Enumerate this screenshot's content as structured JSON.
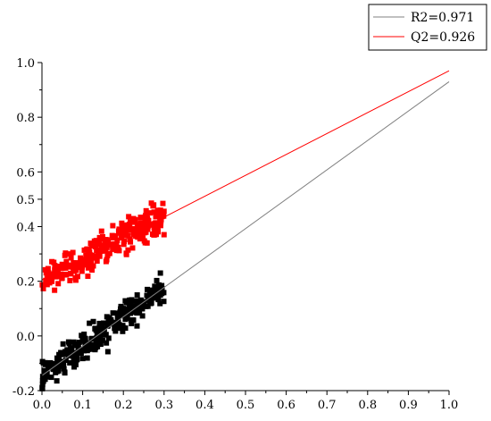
{
  "chart_data": {
    "type": "scatter",
    "title": "",
    "xlabel": "",
    "ylabel": "",
    "xlim": [
      0.0,
      1.0
    ],
    "ylim": [
      -0.2,
      1.0
    ],
    "x_ticks": [
      "0.0",
      "0.1",
      "0.2",
      "0.3",
      "0.4",
      "0.5",
      "0.6",
      "0.7",
      "0.8",
      "0.9",
      "1.0"
    ],
    "y_ticks": [
      "-0.2",
      "0.0",
      "0.2",
      "0.4",
      "0.5",
      "0.6",
      "0.8",
      "1.0"
    ],
    "grid": false,
    "legend_position": "top-right",
    "series": [
      {
        "name": "R2=0.971",
        "color": "#000000",
        "line_color": "#808080",
        "marker": "square",
        "x_range": [
          0.0,
          0.3
        ],
        "fit": {
          "slope": 1.075,
          "intercept": -0.145
        },
        "approx_points": 300,
        "spread": 0.12
      },
      {
        "name": "Q2=0.926",
        "color": "#ff0000",
        "line_color": "#ff0000",
        "marker": "square",
        "x_range": [
          0.0,
          0.3
        ],
        "fit": {
          "slope": 0.765,
          "intercept": 0.205
        },
        "approx_points": 300,
        "spread": 0.12
      }
    ]
  }
}
